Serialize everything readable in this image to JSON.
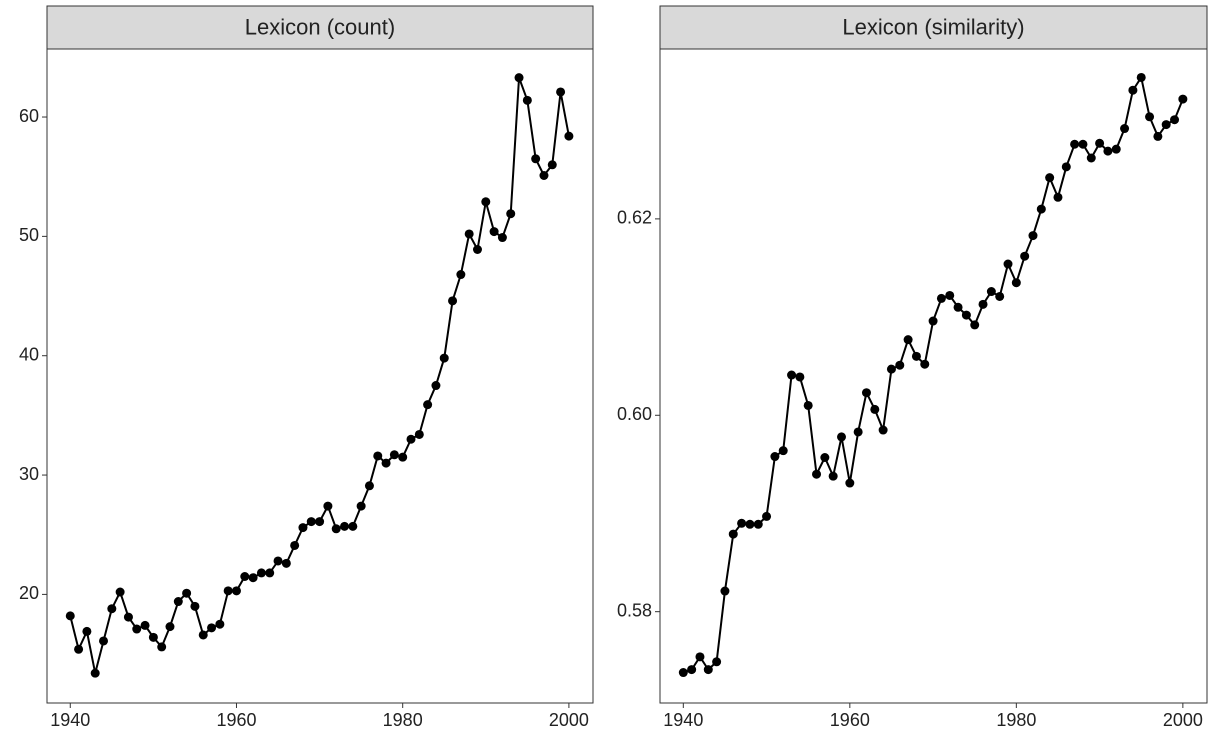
{
  "chart_data": [
    {
      "type": "line",
      "title": "Lexicon (count)",
      "color": "#000000",
      "x": [
        1940,
        1941,
        1942,
        1943,
        1944,
        1945,
        1946,
        1947,
        1948,
        1949,
        1950,
        1951,
        1952,
        1953,
        1954,
        1955,
        1956,
        1957,
        1958,
        1959,
        1960,
        1961,
        1962,
        1963,
        1964,
        1965,
        1966,
        1967,
        1968,
        1969,
        1970,
        1971,
        1972,
        1973,
        1974,
        1975,
        1976,
        1977,
        1978,
        1979,
        1980,
        1981,
        1982,
        1983,
        1984,
        1985,
        1986,
        1987,
        1988,
        1989,
        1990,
        1991,
        1992,
        1993,
        1994,
        1995,
        1996,
        1997,
        1998,
        1999,
        2000
      ],
      "values": [
        18.2,
        15.4,
        16.9,
        13.4,
        16.1,
        18.8,
        20.2,
        18.1,
        17.1,
        17.4,
        16.4,
        15.6,
        17.3,
        19.4,
        20.1,
        19.0,
        16.6,
        17.2,
        17.5,
        20.3,
        20.3,
        21.5,
        21.4,
        21.8,
        21.8,
        22.8,
        22.6,
        24.1,
        25.6,
        26.1,
        26.1,
        27.4,
        25.5,
        25.7,
        25.7,
        27.4,
        29.1,
        31.6,
        31.0,
        31.7,
        31.5,
        33.0,
        33.4,
        35.9,
        37.5,
        39.8,
        44.6,
        46.8,
        50.2,
        48.9,
        52.9,
        50.4,
        49.9,
        51.9,
        63.3,
        61.4,
        56.5,
        55.1,
        56.0,
        62.1,
        58.4
      ],
      "xlim": [
        1937.2,
        2002.9
      ],
      "xticks": [
        1940,
        1960,
        1980,
        2000
      ],
      "ylim": [
        10.9,
        65.7
      ],
      "yticks": [
        20,
        30,
        40,
        50,
        60
      ]
    },
    {
      "type": "line",
      "title": "Lexicon (similarity)",
      "color": "#000000",
      "x": [
        1940,
        1941,
        1942,
        1943,
        1944,
        1945,
        1946,
        1947,
        1948,
        1949,
        1950,
        1951,
        1952,
        1953,
        1954,
        1955,
        1956,
        1957,
        1958,
        1959,
        1960,
        1961,
        1962,
        1963,
        1964,
        1965,
        1966,
        1967,
        1968,
        1969,
        1970,
        1971,
        1972,
        1973,
        1974,
        1975,
        1976,
        1977,
        1978,
        1979,
        1980,
        1981,
        1982,
        1983,
        1984,
        1985,
        1986,
        1987,
        1988,
        1989,
        1990,
        1991,
        1992,
        1993,
        1994,
        1995,
        1996,
        1997,
        1998,
        1999,
        2000
      ],
      "values": [
        0.5738,
        0.5741,
        0.5754,
        0.5741,
        0.5749,
        0.5821,
        0.5879,
        0.589,
        0.5889,
        0.5889,
        0.5897,
        0.5958,
        0.5964,
        0.6041,
        0.6039,
        0.601,
        0.594,
        0.5957,
        0.5938,
        0.5978,
        0.5931,
        0.5983,
        0.6023,
        0.6006,
        0.5985,
        0.6047,
        0.6051,
        0.6077,
        0.606,
        0.6052,
        0.6096,
        0.6119,
        0.6122,
        0.611,
        0.6102,
        0.6092,
        0.6113,
        0.6126,
        0.6121,
        0.6154,
        0.6135,
        0.6162,
        0.6183,
        0.621,
        0.6242,
        0.6222,
        0.6253,
        0.6276,
        0.6276,
        0.6262,
        0.6277,
        0.6269,
        0.6271,
        0.6292,
        0.6331,
        0.6344,
        0.6304,
        0.6284,
        0.6296,
        0.6301,
        0.6322
      ],
      "xlim": [
        1937.2,
        2002.9
      ],
      "xticks": [
        1940,
        1960,
        1980,
        2000
      ],
      "ylim": [
        0.5707,
        0.6373
      ],
      "yticks": [
        0.58,
        {
          "value": 0.6,
          "label": "0.60"
        },
        0.62
      ]
    }
  ]
}
